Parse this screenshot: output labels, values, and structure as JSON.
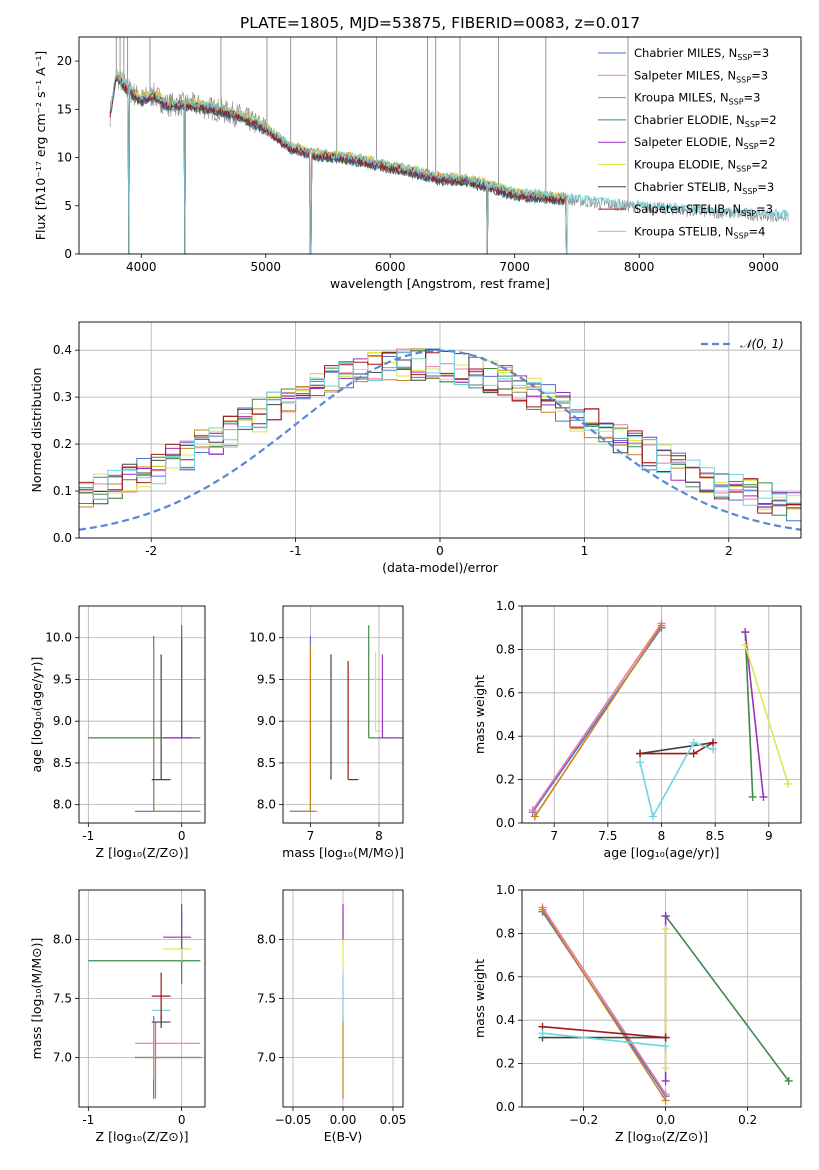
{
  "figure": {
    "title": "PLATE=1805, MJD=53875, FIBERID=0083, z=0.017"
  },
  "palette": [
    "#4c72d0",
    "#ee7aa8",
    "#c8841e",
    "#3f8a4a",
    "#9a2fc0",
    "#d9e94e",
    "#444444",
    "#a01818",
    "#6fd5dc"
  ],
  "chart_data": [
    {
      "id": "spectrum",
      "type": "line",
      "xlabel": "wavelength [Angstrom, rest frame]",
      "ylabel": "Flux [fλ10⁻¹⁷ erg cm⁻² s⁻¹ A⁻¹]",
      "xlim": [
        3500,
        9300
      ],
      "ylim": [
        0,
        22.5
      ],
      "xticks": [
        4000,
        5000,
        6000,
        7000,
        8000,
        9000
      ],
      "yticks": [
        0,
        5,
        10,
        15,
        20
      ],
      "grid": false,
      "legend_position": "top-right",
      "legend": [
        {
          "name": "Chabrier MILES, N",
          "sub": "SSP",
          "suffix": "=3"
        },
        {
          "name": "Salpeter MILES, N",
          "sub": "SSP",
          "suffix": "=3"
        },
        {
          "name": "Kroupa MILES, N",
          "sub": "SSP",
          "suffix": "=3"
        },
        {
          "name": "Chabrier ELODIE, N",
          "sub": "SSP",
          "suffix": "=2"
        },
        {
          "name": "Salpeter ELODIE, N",
          "sub": "SSP",
          "suffix": "=2"
        },
        {
          "name": "Kroupa ELODIE, N",
          "sub": "SSP",
          "suffix": "=2"
        },
        {
          "name": "Chabrier STELIB, N",
          "sub": "SSP",
          "suffix": "=3"
        },
        {
          "name": "Salpeter STELIB, N",
          "sub": "SSP",
          "suffix": "=3"
        },
        {
          "name": "Kroupa STELIB, N",
          "sub": "SSP",
          "suffix": "=4"
        }
      ],
      "continuum": {
        "x": [
          3750,
          3800,
          3900,
          4000,
          4100,
          4200,
          4400,
          4600,
          4800,
          5000,
          5200,
          5400,
          5600,
          5800,
          6000,
          6200,
          6400,
          6600,
          6800,
          7000,
          7200,
          7400,
          7600,
          7800,
          8000,
          8200,
          8400,
          8600,
          8800,
          9000,
          9200
        ],
        "y": [
          14.5,
          18.5,
          17.0,
          16.0,
          16.5,
          15.5,
          15.5,
          15.0,
          14.3,
          13.0,
          11.0,
          10.3,
          10.0,
          9.6,
          9.0,
          8.5,
          7.8,
          7.7,
          7.0,
          6.2,
          6.0,
          5.7,
          5.4,
          5.1,
          4.9,
          4.7,
          4.5,
          4.3,
          4.2,
          4.0,
          3.9
        ]
      },
      "emission_lines_x": [
        3800,
        3830,
        3860,
        3890,
        4070,
        4640,
        5010,
        5200,
        5570,
        5890,
        6300,
        6365,
        6560,
        6870,
        7250,
        7910
      ],
      "model_dips_x": [
        3900,
        4350,
        5360,
        6780,
        7420
      ]
    },
    {
      "id": "residual-histogram",
      "type": "bar",
      "xlabel": "(data-model)/error",
      "ylabel": "Normed distribution",
      "xlim": [
        -2.5,
        2.5
      ],
      "ylim": [
        0,
        0.46
      ],
      "xticks": [
        -2,
        -1,
        0,
        1,
        2
      ],
      "yticks": [
        0.0,
        0.1,
        0.2,
        0.3,
        0.4
      ],
      "grid": true,
      "legend_position": "top-right",
      "legend": [
        {
          "name": "𝒩(0, 1)"
        }
      ],
      "bin_width": 0.1,
      "gaussian": {
        "mu": 0,
        "sigma": 1
      }
    },
    {
      "id": "age-vs-Z",
      "type": "errorbar",
      "xlabel": "Z [log₁₀(Z/Z⊙)]",
      "ylabel": "age  [log₁₀(age/yr)]",
      "xlim": [
        -1.1,
        0.25
      ],
      "ylim": [
        7.78,
        10.38
      ],
      "xticks": [
        -1,
        0
      ],
      "yticks": [
        8.0,
        8.5,
        9.0,
        9.5,
        10.0
      ],
      "grid": true,
      "points": [
        {
          "x": -0.3,
          "y": 7.92,
          "xerr": [
            0.2,
            0.5
          ],
          "yerr": [
            0,
            2.1
          ],
          "c": 0
        },
        {
          "x": -0.3,
          "y": 7.92,
          "xerr": [
            0.0,
            0.5
          ],
          "yerr": [
            0,
            2.0
          ],
          "c": 2
        },
        {
          "x": -0.22,
          "y": 8.3,
          "xerr": [
            0.1,
            0.1
          ],
          "yerr": [
            0,
            1.5
          ],
          "c": 6
        },
        {
          "x": 0.0,
          "y": 8.8,
          "xerr": [
            0.2,
            0.1
          ],
          "yerr": [
            0,
            1.05
          ],
          "c": 5
        },
        {
          "x": 0.0,
          "y": 8.8,
          "xerr": [
            1.0,
            0.2
          ],
          "yerr": [
            0,
            1.35
          ],
          "c": 3
        },
        {
          "x": 0.0,
          "y": 8.8,
          "xerr": [
            0.2,
            0.1
          ],
          "yerr": [
            0,
            1.2
          ],
          "c": 4
        }
      ]
    },
    {
      "id": "age-vs-mass",
      "type": "errorbar",
      "xlabel": "mass [log₁₀(M/M⊙)]",
      "ylabel": "",
      "xlim": [
        6.6,
        8.35
      ],
      "ylim": [
        7.78,
        10.38
      ],
      "xticks": [
        7,
        8
      ],
      "yticks": [
        8.0,
        8.5,
        9.0,
        9.5,
        10.0
      ],
      "grid": true,
      "points": [
        {
          "x": 7.0,
          "y": 7.92,
          "xerr": [
            0.3,
            0.05
          ],
          "yerr": [
            0,
            2.1
          ],
          "c": 0
        },
        {
          "x": 7.0,
          "y": 7.92,
          "xerr": [
            0.3,
            0.1
          ],
          "yerr": [
            0,
            2.0
          ],
          "c": 2
        },
        {
          "x": 7.3,
          "y": 8.3,
          "xerr": [
            0.0,
            0.0
          ],
          "yerr": [
            0,
            1.5
          ],
          "c": 6
        },
        {
          "x": 7.55,
          "y": 8.3,
          "xerr": [
            0.0,
            0.15
          ],
          "yerr": [
            0,
            1.42
          ],
          "c": 7
        },
        {
          "x": 7.85,
          "y": 8.8,
          "xerr": [
            0,
            0.25
          ],
          "yerr": [
            0,
            1.35
          ],
          "c": 3
        },
        {
          "x": 7.95,
          "y": 8.88,
          "xerr": [
            0,
            0.1
          ],
          "yerr": [
            0,
            0.95
          ],
          "c": 5
        },
        {
          "x": 8.05,
          "y": 8.8,
          "xerr": [
            0,
            0.3
          ],
          "yerr": [
            0,
            1.0
          ],
          "c": 4
        }
      ]
    },
    {
      "id": "weight-vs-age",
      "type": "line",
      "xlabel": "age  [log₁₀(age/yr)]",
      "ylabel": "mass weight",
      "xlim": [
        6.7,
        9.3
      ],
      "ylim": [
        0,
        1.0
      ],
      "xticks": [
        7.0,
        7.5,
        8.0,
        8.5,
        9.0
      ],
      "yticks": [
        0.0,
        0.2,
        0.4,
        0.6,
        0.8,
        1.0
      ],
      "grid": true,
      "series": [
        {
          "c": 0,
          "x": [
            6.8,
            8.0
          ],
          "y": [
            0.05,
            0.9
          ]
        },
        {
          "c": 1,
          "x": [
            6.8,
            8.0
          ],
          "y": [
            0.06,
            0.92
          ]
        },
        {
          "c": 2,
          "x": [
            6.82,
            8.0
          ],
          "y": [
            0.03,
            0.91
          ]
        },
        {
          "c": 3,
          "x": [
            8.78,
            8.85
          ],
          "y": [
            0.88,
            0.12
          ]
        },
        {
          "c": 4,
          "x": [
            8.78,
            8.95
          ],
          "y": [
            0.88,
            0.12
          ]
        },
        {
          "c": 5,
          "x": [
            8.78,
            9.18
          ],
          "y": [
            0.82,
            0.18
          ]
        },
        {
          "c": 6,
          "x": [
            7.8,
            8.48
          ],
          "y": [
            0.32,
            0.37
          ]
        },
        {
          "c": 7,
          "x": [
            7.8,
            8.3,
            8.48
          ],
          "y": [
            0.32,
            0.32,
            0.37
          ]
        },
        {
          "c": 8,
          "x": [
            7.8,
            7.92,
            8.3,
            8.48
          ],
          "y": [
            0.28,
            0.03,
            0.37,
            0.34
          ]
        }
      ]
    },
    {
      "id": "mass-vs-Z",
      "type": "errorbar",
      "xlabel": "Z [log₁₀(Z/Z⊙)]",
      "ylabel": "mass [log₁₀(M/M⊙)]",
      "xlim": [
        -1.1,
        0.25
      ],
      "ylim": [
        6.58,
        8.42
      ],
      "xticks": [
        -1,
        0
      ],
      "yticks": [
        7.0,
        7.5,
        8.0
      ],
      "grid": true,
      "points": [
        {
          "x": -0.3,
          "y": 7.0,
          "xerr": [
            0.2,
            0.5
          ],
          "yerr": [
            0.35,
            0.35
          ],
          "c": 0
        },
        {
          "x": -0.3,
          "y": 7.12,
          "xerr": [
            0.2,
            0.5
          ],
          "yerr": [
            0.3,
            0.2
          ],
          "c": 1
        },
        {
          "x": -0.28,
          "y": 7.0,
          "xerr": [
            0.2,
            0.5
          ],
          "yerr": [
            0.35,
            0.3
          ],
          "c": 2
        },
        {
          "x": -0.22,
          "y": 7.4,
          "xerr": [
            0.1,
            0.1
          ],
          "yerr": [
            0.15,
            0.1
          ],
          "c": 8
        },
        {
          "x": -0.22,
          "y": 7.3,
          "xerr": [
            0.1,
            0.1
          ],
          "yerr": [
            0.05,
            0.05
          ],
          "c": 6
        },
        {
          "x": -0.22,
          "y": 7.52,
          "xerr": [
            0.1,
            0.1
          ],
          "yerr": [
            0.2,
            0.2
          ],
          "c": 7
        },
        {
          "x": 0.0,
          "y": 7.82,
          "xerr": [
            1.0,
            0.2
          ],
          "yerr": [
            0.2,
            0.4
          ],
          "c": 3
        },
        {
          "x": 0.0,
          "y": 7.92,
          "xerr": [
            0.2,
            0.1
          ],
          "yerr": [
            0.1,
            0.2
          ],
          "c": 5
        },
        {
          "x": 0.0,
          "y": 8.02,
          "xerr": [
            0.2,
            0.1
          ],
          "yerr": [
            0.1,
            0.28
          ],
          "c": 4
        }
      ]
    },
    {
      "id": "mass-vs-EBV",
      "type": "errorbar",
      "xlabel": "E(B-V)",
      "ylabel": "",
      "xlim": [
        -0.06,
        0.06
      ],
      "ylim": [
        6.58,
        8.42
      ],
      "xticks": [
        -0.05,
        0.0,
        0.05
      ],
      "xtick_labels": [
        "−0.05",
        "0.00",
        "0.05"
      ],
      "yticks": [
        7.0,
        7.5,
        8.0
      ],
      "grid": true,
      "points": [
        {
          "x": 0,
          "y": 7.0,
          "xerr": [
            0,
            0
          ],
          "yerr": [
            0.35,
            0.35
          ],
          "c": 2
        },
        {
          "x": 0,
          "y": 7.5,
          "xerr": [
            0,
            0
          ],
          "yerr": [
            0.2,
            0.2
          ],
          "c": 8
        },
        {
          "x": 0,
          "y": 7.95,
          "xerr": [
            0,
            0
          ],
          "yerr": [
            0.2,
            0.3
          ],
          "c": 5
        },
        {
          "x": 0,
          "y": 8.1,
          "xerr": [
            0,
            0
          ],
          "yerr": [
            0.1,
            0.2
          ],
          "c": 4
        }
      ]
    },
    {
      "id": "weight-vs-Z",
      "type": "line",
      "xlabel": "Z [log₁₀(Z/Z⊙)]",
      "ylabel": "mass weight",
      "xlim": [
        -0.35,
        0.33
      ],
      "ylim": [
        0,
        1.0
      ],
      "xticks": [
        -0.2,
        0.0,
        0.2
      ],
      "xtick_labels": [
        "−0.2",
        "0.0",
        "0.2"
      ],
      "yticks": [
        0.0,
        0.2,
        0.4,
        0.6,
        0.8,
        1.0
      ],
      "grid": true,
      "series": [
        {
          "c": 0,
          "x": [
            -0.3,
            0.0
          ],
          "y": [
            0.9,
            0.05
          ]
        },
        {
          "c": 1,
          "x": [
            -0.3,
            0.0
          ],
          "y": [
            0.92,
            0.06
          ]
        },
        {
          "c": 2,
          "x": [
            -0.3,
            0.0
          ],
          "y": [
            0.91,
            0.03
          ]
        },
        {
          "c": 3,
          "x": [
            0.0,
            0.3
          ],
          "y": [
            0.88,
            0.12
          ]
        },
        {
          "c": 4,
          "x": [
            0.0,
            0.0
          ],
          "y": [
            0.88,
            0.12
          ]
        },
        {
          "c": 5,
          "x": [
            0.0,
            0.0
          ],
          "y": [
            0.82,
            0.18
          ]
        },
        {
          "c": 6,
          "x": [
            -0.3,
            0.0
          ],
          "y": [
            0.32,
            0.32
          ]
        },
        {
          "c": 7,
          "x": [
            -0.3,
            0.0
          ],
          "y": [
            0.37,
            0.32
          ]
        },
        {
          "c": 8,
          "x": [
            -0.3,
            0.0
          ],
          "y": [
            0.34,
            0.28
          ]
        }
      ]
    }
  ]
}
